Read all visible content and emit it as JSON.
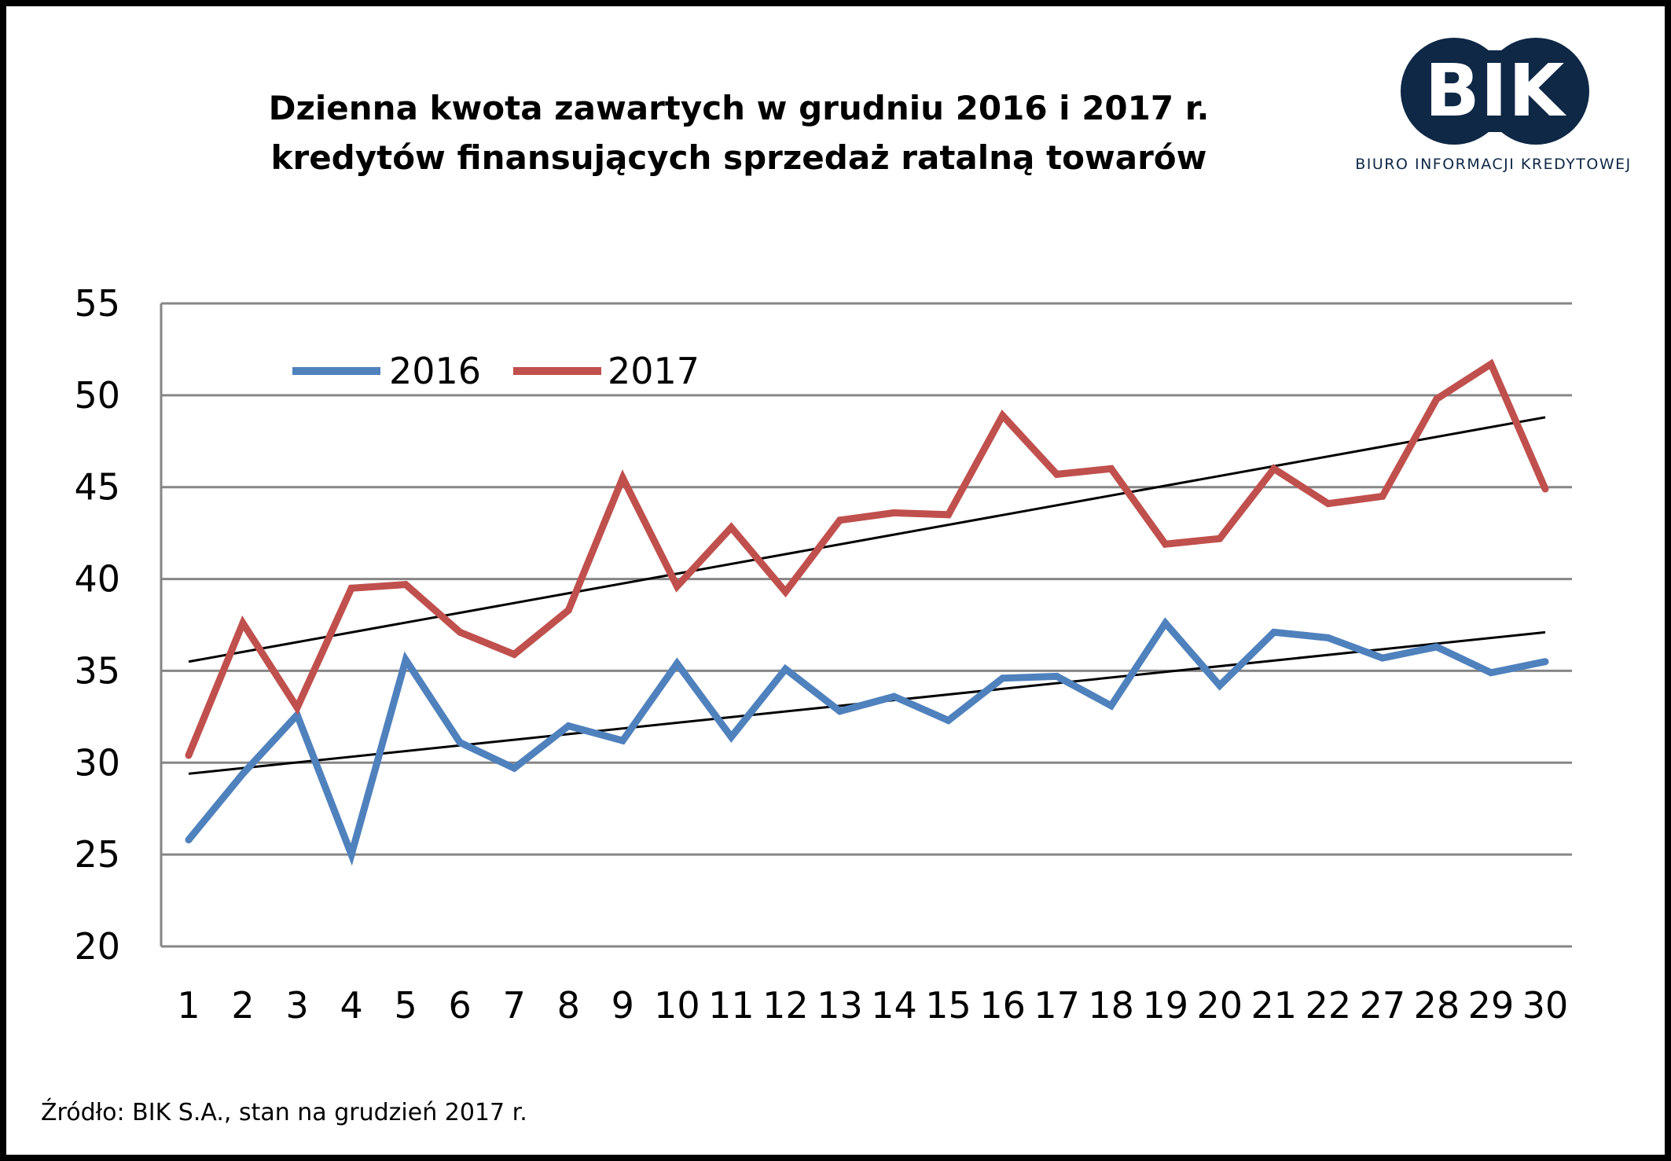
{
  "title": {
    "line1": "Dzienna kwota zawartych w grudniu 2016 i 2017 r.",
    "line2": "kredytów finansujących sprzedaż ratalną towarów"
  },
  "logo": {
    "text": "BIK",
    "subtitle": "BIURO INFORMACJI KREDYTOWEJ",
    "color": "#0e2846"
  },
  "source": "Źródło: BIK S.A., stan na grudzień 2017 r.",
  "chart_data": {
    "type": "line",
    "categories": [
      "1",
      "2",
      "3",
      "4",
      "5",
      "6",
      "7",
      "8",
      "9",
      "10",
      "11",
      "12",
      "13",
      "14",
      "15",
      "16",
      "17",
      "18",
      "19",
      "20",
      "21",
      "22",
      "27",
      "28",
      "29",
      "30"
    ],
    "series": [
      {
        "name": "2016",
        "color": "#4f81bd",
        "values": [
          25.8,
          29.4,
          32.6,
          25.0,
          35.6,
          31.1,
          29.7,
          32.0,
          31.2,
          35.4,
          31.4,
          35.1,
          32.8,
          33.6,
          32.3,
          34.6,
          34.7,
          33.1,
          37.6,
          34.2,
          37.1,
          36.8,
          35.7,
          36.3,
          34.9,
          35.5
        ]
      },
      {
        "name": "2017",
        "color": "#c0504d",
        "values": [
          30.4,
          37.6,
          33.0,
          39.5,
          39.7,
          37.1,
          35.9,
          38.3,
          45.5,
          39.6,
          42.8,
          39.3,
          43.2,
          43.6,
          43.5,
          48.9,
          45.7,
          46.0,
          41.9,
          42.2,
          46.0,
          44.1,
          44.5,
          49.8,
          51.7,
          44.9
        ]
      }
    ],
    "trendlines": [
      {
        "series": "2016",
        "start": 29.4,
        "end": 37.1,
        "color": "#000000"
      },
      {
        "series": "2017",
        "start": 35.5,
        "end": 48.8,
        "color": "#000000"
      }
    ],
    "yticks": [
      "20",
      "25",
      "30",
      "35",
      "40",
      "45",
      "50",
      "55"
    ],
    "ylim": [
      20,
      55
    ],
    "grid": true,
    "legend_position": "top-left"
  }
}
